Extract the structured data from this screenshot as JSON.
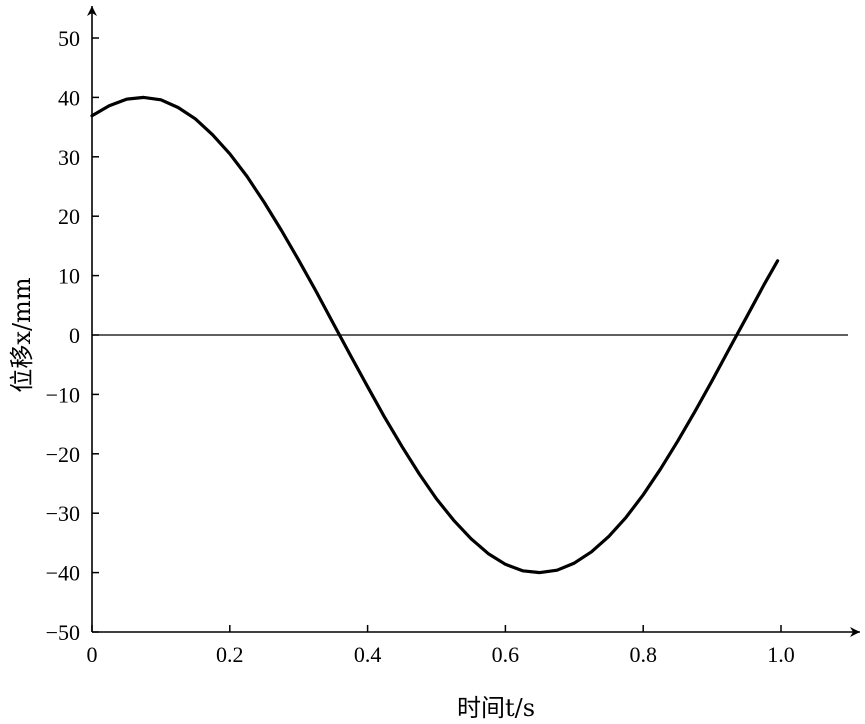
{
  "chart_data": {
    "type": "line",
    "title": "",
    "xlabel": "时间t/s",
    "ylabel": "位移x/mm",
    "xlim": [
      0,
      1.1
    ],
    "ylim": [
      -50,
      50
    ],
    "xticks": [
      0,
      0.2,
      0.4,
      0.6,
      0.8,
      1.0
    ],
    "xtick_labels": [
      "0",
      "0.2",
      "0.4",
      "0.6",
      "0.8",
      "1.0"
    ],
    "yticks": [
      50,
      40,
      30,
      20,
      10,
      0,
      -10,
      -20,
      -30,
      -40,
      -50
    ],
    "ytick_labels": [
      "50",
      "40",
      "30",
      "20",
      "10",
      "0",
      "−10",
      "−20",
      "−30",
      "−40",
      "−50"
    ],
    "grid": false,
    "zero_line": true,
    "series": [
      {
        "x": [
          0.0,
          0.025,
          0.05,
          0.075,
          0.1,
          0.125,
          0.15,
          0.175,
          0.2,
          0.225,
          0.25,
          0.275,
          0.3,
          0.325,
          0.35,
          0.375,
          0.4,
          0.425,
          0.45,
          0.475,
          0.5,
          0.525,
          0.55,
          0.575,
          0.6,
          0.625,
          0.65,
          0.675,
          0.7,
          0.725,
          0.75,
          0.775,
          0.8,
          0.825,
          0.85,
          0.875,
          0.9,
          0.925,
          0.95,
          0.975,
          0.995
        ],
        "y": [
          36.9,
          38.6,
          39.7,
          40.0,
          39.6,
          38.3,
          36.4,
          33.7,
          30.5,
          26.7,
          22.3,
          17.6,
          12.6,
          7.4,
          2.0,
          -3.4,
          -8.7,
          -13.9,
          -18.8,
          -23.4,
          -27.6,
          -31.2,
          -34.3,
          -36.8,
          -38.6,
          -39.7,
          -40.0,
          -39.6,
          -38.4,
          -36.5,
          -33.9,
          -30.7,
          -26.9,
          -22.6,
          -17.9,
          -12.9,
          -7.7,
          -2.3,
          3.0,
          8.4,
          12.5
        ]
      }
    ]
  }
}
